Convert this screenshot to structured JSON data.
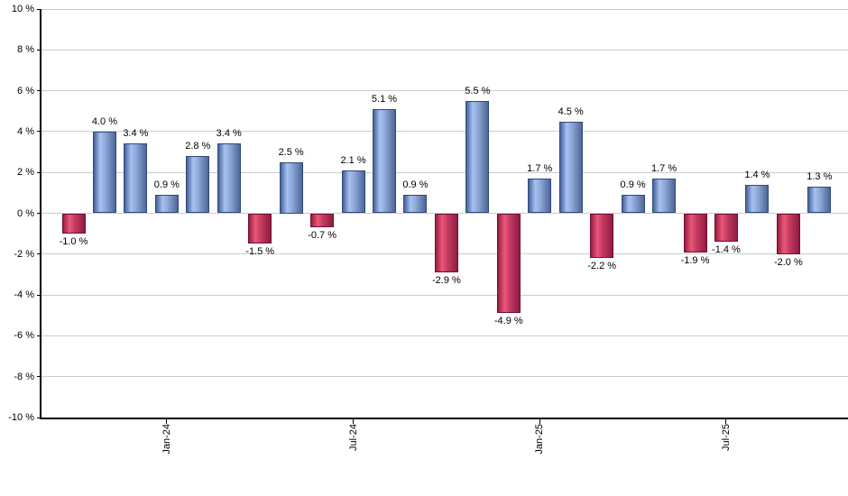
{
  "chart_data": {
    "type": "bar",
    "title": "",
    "xlabel": "",
    "ylabel": "",
    "unit": "%",
    "ylim": [
      -10,
      10
    ],
    "ytick_step": 2,
    "grid": true,
    "legend": false,
    "values": [
      -1.0,
      4.0,
      3.4,
      0.9,
      2.8,
      3.4,
      -1.5,
      2.5,
      -0.7,
      2.1,
      5.1,
      0.9,
      -2.9,
      5.5,
      -4.9,
      1.7,
      4.5,
      -2.2,
      0.9,
      1.7,
      -1.9,
      -1.4,
      1.4,
      -2.0,
      1.3
    ],
    "bar_labels": [
      "-1.0 %",
      "4.0 %",
      "3.4 %",
      "0.9 %",
      "2.8 %",
      "3.4 %",
      "-1.5 %",
      "2.5 %",
      "-0.7 %",
      "2.1 %",
      "5.1 %",
      "0.9 %",
      "-2.9 %",
      "5.5 %",
      "-4.9 %",
      "1.7 %",
      "4.5 %",
      "-2.2 %",
      "0.9 %",
      "1.7 %",
      "-1.9 %",
      "-1.4 %",
      "1.4 %",
      "-2.0 %",
      "1.3 %"
    ],
    "y_tick_labels": [
      "10 %",
      "8 %",
      "6 %",
      "4 %",
      "2 %",
      "0 %",
      "-2 %",
      "-4 %",
      "-6 %",
      "-8 %",
      "-10 %"
    ],
    "x_ticks": [
      {
        "label": "Jan-24",
        "bar_index": 3
      },
      {
        "label": "Jul-24",
        "bar_index": 9
      },
      {
        "label": "Jan-25",
        "bar_index": 15
      },
      {
        "label": "Jul-25",
        "bar_index": 21
      }
    ],
    "colors": {
      "positive_gradient": [
        "#44619A",
        "#A6C2F0",
        "#8CA6D6",
        "#4E6597"
      ],
      "positive_border": "#31497B",
      "negative_gradient": [
        "#9B1C40",
        "#E8587A",
        "#C63A60",
        "#8E1C42"
      ],
      "negative_border": "#701031",
      "gridline": "#CCCCCC",
      "axis": "#000000",
      "text": "#000000"
    }
  }
}
